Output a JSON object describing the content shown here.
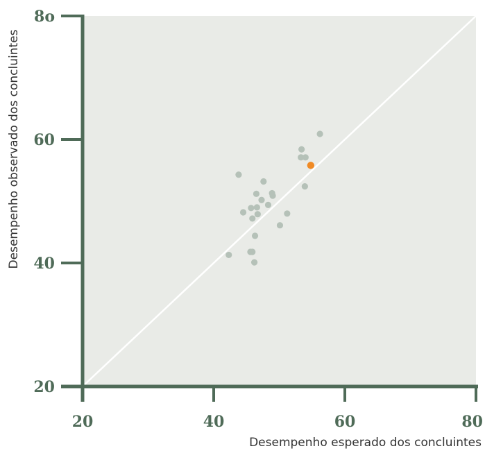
{
  "chart_data": {
    "type": "scatter",
    "title": "",
    "xlabel": "Desempenho esperado dos concluintes",
    "ylabel": "Desempenho observado dos concluintes",
    "xlim": [
      20,
      80
    ],
    "ylim": [
      20,
      80
    ],
    "xticks": [
      "20",
      "40",
      "60",
      "80"
    ],
    "yticks": [
      "20",
      "40",
      "60",
      "8o"
    ],
    "grid": false,
    "reference_line": "y = x",
    "colors": {
      "plot_background": "#e9ebe7",
      "axis": "#4f6b58",
      "reference_line": "#ffffff",
      "points": "#b5c1b8",
      "highlight": "#f08a24"
    },
    "series": [
      {
        "values": [
          [
            43.8,
            54.3
          ],
          [
            47.6,
            53.2
          ],
          [
            46.5,
            51.2
          ],
          [
            48.9,
            51.3
          ],
          [
            49.0,
            50.9
          ],
          [
            47.3,
            50.2
          ],
          [
            48.3,
            49.4
          ],
          [
            46.6,
            49.0
          ],
          [
            45.7,
            48.9
          ],
          [
            44.5,
            48.2
          ],
          [
            46.7,
            47.9
          ],
          [
            51.2,
            48.0
          ],
          [
            45.9,
            47.2
          ],
          [
            50.1,
            46.1
          ],
          [
            46.3,
            44.4
          ],
          [
            42.3,
            41.3
          ],
          [
            45.6,
            41.8
          ],
          [
            45.9,
            41.8
          ],
          [
            46.2,
            40.1
          ],
          [
            53.4,
            58.4
          ],
          [
            53.3,
            57.1
          ],
          [
            54.0,
            57.1
          ],
          [
            56.2,
            60.9
          ],
          [
            53.9,
            52.4
          ]
        ]
      },
      {
        "values": [
          [
            54.8,
            55.8
          ]
        ]
      }
    ]
  }
}
